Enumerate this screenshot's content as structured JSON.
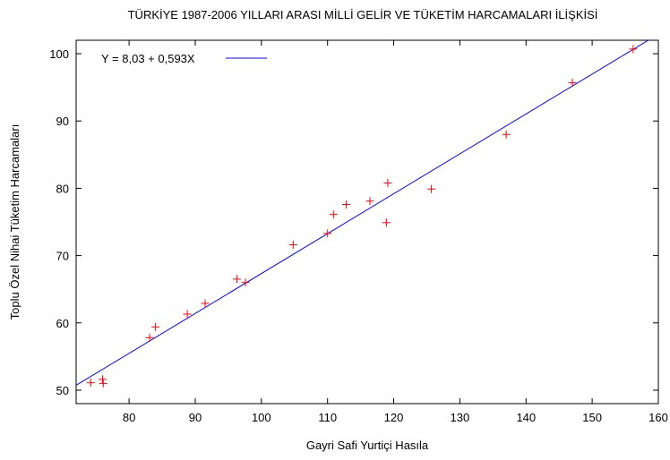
{
  "chart_data": {
    "type": "scatter",
    "title": "TÜRKİYE 1987-2006 YILLARI ARASI MİLLİ GELİR VE TÜKETİM HARCAMALARI İLİŞKİSİ",
    "xlabel": "Gayri Safi Yurtiçi Hasıla",
    "ylabel": "Toplu Özel Nihai Tüketim Harcamaları",
    "xlim": [
      72,
      160
    ],
    "ylim": [
      48,
      102
    ],
    "xticks": [
      80,
      90,
      100,
      110,
      120,
      130,
      140,
      150,
      160
    ],
    "yticks": [
      50,
      60,
      70,
      80,
      90,
      100
    ],
    "grid": false,
    "legend_position": "top-left",
    "colors": {
      "points": "#ff0000",
      "fit_line": "#0000ff",
      "axes": "#000000"
    },
    "series": [
      {
        "type": "scatter",
        "marker": "+",
        "points": [
          {
            "x": 74.2,
            "y": 51.1
          },
          {
            "x": 76.0,
            "y": 51.6
          },
          {
            "x": 76.1,
            "y": 51.0
          },
          {
            "x": 83.1,
            "y": 57.8
          },
          {
            "x": 84.0,
            "y": 59.4
          },
          {
            "x": 88.8,
            "y": 61.3
          },
          {
            "x": 91.5,
            "y": 62.9
          },
          {
            "x": 96.3,
            "y": 66.5
          },
          {
            "x": 97.6,
            "y": 66.0
          },
          {
            "x": 104.8,
            "y": 71.6
          },
          {
            "x": 110.0,
            "y": 73.3
          },
          {
            "x": 110.9,
            "y": 76.1
          },
          {
            "x": 112.8,
            "y": 77.6
          },
          {
            "x": 116.4,
            "y": 78.1
          },
          {
            "x": 118.9,
            "y": 74.9
          },
          {
            "x": 119.1,
            "y": 80.8
          },
          {
            "x": 125.7,
            "y": 79.9
          },
          {
            "x": 137.0,
            "y": 88.0
          },
          {
            "x": 147.0,
            "y": 95.7
          },
          {
            "x": 156.2,
            "y": 100.7
          }
        ]
      },
      {
        "type": "line",
        "name": "Y = 8,03 + 0,593X",
        "intercept": 8.03,
        "slope": 0.593,
        "x_range": [
          72,
          160
        ]
      }
    ]
  }
}
